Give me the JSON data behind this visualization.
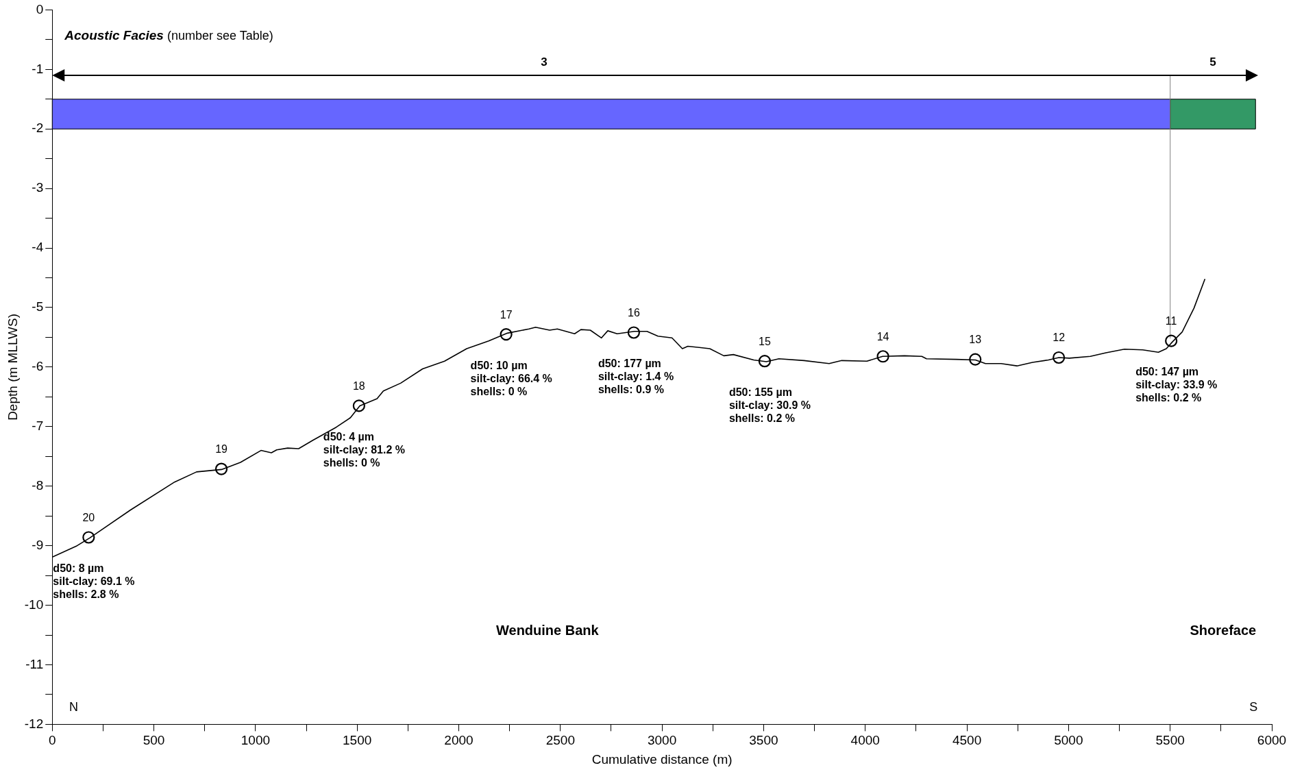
{
  "chart_data": {
    "type": "line",
    "xlabel": "Cumulative distance (m)",
    "ylabel": "Depth (m MLLWS)",
    "xlim": [
      0,
      6000
    ],
    "ylim": [
      -12,
      0
    ],
    "xticks": [
      0,
      {
        "value": 250,
        "label": null
      },
      500,
      {
        "value": 750,
        "label": null
      },
      1000,
      {
        "value": 1250,
        "label": null
      },
      1500,
      {
        "value": 1750,
        "label": null
      },
      2000,
      {
        "value": 2250,
        "label": null
      },
      2500,
      {
        "value": 2750,
        "label": null
      },
      3000,
      {
        "value": 3250,
        "label": null
      },
      3500,
      {
        "value": 3750,
        "label": null
      },
      4000,
      {
        "value": 4250,
        "label": null
      },
      4500,
      {
        "value": 4750,
        "label": null
      },
      5000,
      {
        "value": 5250,
        "label": null
      },
      5500,
      {
        "value": 5750,
        "label": null
      },
      6000
    ],
    "yticks": [
      -12,
      {
        "value": -11.5,
        "label": null
      },
      -11,
      {
        "value": -10.5,
        "label": null
      },
      -10,
      {
        "value": -9.5,
        "label": null
      },
      -9,
      {
        "value": -8.5,
        "label": null
      },
      -8,
      {
        "value": -7.5,
        "label": null
      },
      -7,
      {
        "value": -6.5,
        "label": null
      },
      -6,
      {
        "value": -5.5,
        "label": null
      },
      -5,
      {
        "value": -4.5,
        "label": null
      },
      -4,
      {
        "value": -3.5,
        "label": null
      },
      -3,
      {
        "value": -2.5,
        "label": null
      },
      -2,
      {
        "value": -1.5,
        "label": null
      },
      -1,
      {
        "value": -0.5,
        "label": null
      },
      0
    ],
    "series": [
      {
        "type": "line",
        "color": "#000000",
        "marker": "none",
        "x": [
          0,
          122,
          184,
          385,
          602,
          710,
          833,
          926,
          1027,
          1078,
          1104,
          1158,
          1212,
          1282,
          1397,
          1467,
          1513,
          1598,
          1629,
          1714,
          1822,
          1930,
          2039,
          2147,
          2239,
          2345,
          2378,
          2447,
          2485,
          2570,
          2601,
          2647,
          2702,
          2733,
          2779,
          2864,
          2926,
          2980,
          3049,
          3100,
          3127,
          3235,
          3304,
          3351,
          3451,
          3513,
          3575,
          3699,
          3822,
          3884,
          4008,
          4085,
          4193,
          4278,
          4301,
          4449,
          4542,
          4591,
          4668,
          4746,
          4823,
          4901,
          4952,
          5004,
          5107,
          5184,
          5275,
          5365,
          5442,
          5481,
          5510,
          5559,
          5617,
          5671
        ],
        "values": [
          -9.19,
          -9.0,
          -8.87,
          -8.4,
          -7.93,
          -7.76,
          -7.72,
          -7.6,
          -7.4,
          -7.44,
          -7.39,
          -7.36,
          -7.37,
          -7.23,
          -7.01,
          -6.85,
          -6.65,
          -6.53,
          -6.4,
          -6.27,
          -6.03,
          -5.9,
          -5.69,
          -5.56,
          -5.43,
          -5.36,
          -5.33,
          -5.38,
          -5.36,
          -5.44,
          -5.37,
          -5.38,
          -5.51,
          -5.39,
          -5.44,
          -5.4,
          -5.4,
          -5.48,
          -5.51,
          -5.69,
          -5.65,
          -5.69,
          -5.81,
          -5.79,
          -5.88,
          -5.91,
          -5.86,
          -5.89,
          -5.94,
          -5.89,
          -5.9,
          -5.82,
          -5.81,
          -5.82,
          -5.86,
          -5.87,
          -5.88,
          -5.94,
          -5.94,
          -5.98,
          -5.92,
          -5.88,
          -5.84,
          -5.85,
          -5.82,
          -5.76,
          -5.7,
          -5.71,
          -5.75,
          -5.69,
          -5.58,
          -5.41,
          -5.01,
          -4.52
        ]
      },
      {
        "type": "scatter",
        "color": "#000000",
        "marker": "circle",
        "x": [
          179,
          832,
          1509,
          2233,
          2861,
          3505,
          4087,
          4541,
          4952,
          5505
        ],
        "values": [
          -8.86,
          -7.71,
          -6.65,
          -5.45,
          -5.42,
          -5.9,
          -5.82,
          -5.87,
          -5.84,
          -5.56
        ]
      }
    ],
    "bands": [
      {
        "axis": "x",
        "from": 0,
        "to": 5500,
        "label": "3",
        "color": "#6666ff"
      },
      {
        "axis": "x",
        "from": 5500,
        "to": 5920,
        "label": "5",
        "color": "#339966"
      }
    ],
    "ref_lines": [
      {
        "axis": "x",
        "value": 5500,
        "color": "#808080"
      }
    ],
    "annotations": [
      "Acoustic Facies (number see Table)",
      {
        "text": "20",
        "x": 179,
        "y": -8.86
      },
      {
        "text": "19",
        "x": 832,
        "y": -7.71
      },
      {
        "text": "18",
        "x": 1509,
        "y": -6.65
      },
      {
        "text": "17",
        "x": 2233,
        "y": -5.45
      },
      {
        "text": "16",
        "x": 2861,
        "y": -5.42
      },
      {
        "text": "15",
        "x": 3505,
        "y": -5.9
      },
      {
        "text": "14",
        "x": 4087,
        "y": -5.82
      },
      {
        "text": "13",
        "x": 4541,
        "y": -5.87
      },
      {
        "text": "12",
        "x": 4952,
        "y": -5.84
      },
      {
        "text": "11",
        "x": 5505,
        "y": -5.56
      },
      {
        "text": "d50: 8 µm\nsilt-clay: 69.1 %\nshells: 2.8 %",
        "x": 179,
        "y": -8.86
      },
      {
        "text": "d50: 4 µm\nsilt-clay: 81.2 %\nshells: 0 %",
        "x": 1509,
        "y": -6.65
      },
      {
        "text": "d50: 10 µm\nsilt-clay: 66.4 %\nshells: 0 %",
        "x": 2233,
        "y": -5.45
      },
      {
        "text": "d50: 177 µm\nsilt-clay: 1.4 %\nshells: 0.9 %",
        "x": 2861,
        "y": -5.42
      },
      {
        "text": "d50: 155 µm\nsilt-clay: 30.9 %\nshells: 0.2 %",
        "x": 3505,
        "y": -5.9
      },
      {
        "text": "d50: 147 µm\nsilt-clay: 33.9 %\nshells: 0.2 %",
        "x": 5505,
        "y": -5.56
      },
      "Wenduine Bank",
      "Shoreface",
      "N",
      "S"
    ]
  }
}
